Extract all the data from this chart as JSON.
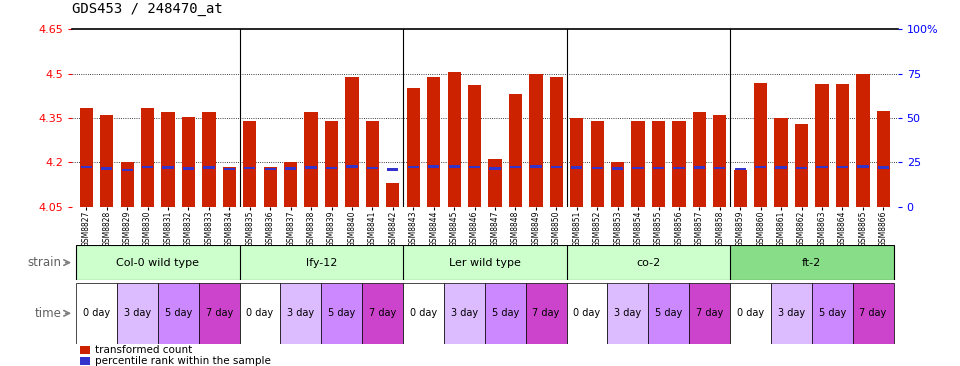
{
  "title": "GDS453 / 248470_at",
  "bar_color": "#CC2200",
  "blue_color": "#3333CC",
  "ylim": [
    4.05,
    4.65
  ],
  "yticks": [
    4.05,
    4.2,
    4.35,
    4.5,
    4.65
  ],
  "gsm_labels": [
    "GSM8827",
    "GSM8828",
    "GSM8829",
    "GSM8830",
    "GSM8831",
    "GSM8832",
    "GSM8833",
    "GSM8834",
    "GSM8835",
    "GSM8836",
    "GSM8837",
    "GSM8838",
    "GSM8839",
    "GSM8840",
    "GSM8841",
    "GSM8842",
    "GSM8843",
    "GSM8844",
    "GSM8845",
    "GSM8846",
    "GSM8847",
    "GSM8848",
    "GSM8849",
    "GSM8850",
    "GSM8851",
    "GSM8852",
    "GSM8853",
    "GSM8854",
    "GSM8855",
    "GSM8856",
    "GSM8857",
    "GSM8858",
    "GSM8859",
    "GSM8860",
    "GSM8861",
    "GSM8862",
    "GSM8863",
    "GSM8864",
    "GSM8865",
    "GSM8866"
  ],
  "bar_heights": [
    4.385,
    4.36,
    4.2,
    4.385,
    4.37,
    4.355,
    4.37,
    4.185,
    4.34,
    4.185,
    4.2,
    4.37,
    4.34,
    4.49,
    4.34,
    4.13,
    4.45,
    4.49,
    4.505,
    4.46,
    4.21,
    4.43,
    4.5,
    4.49,
    4.35,
    4.34,
    4.2,
    4.34,
    4.34,
    4.34,
    4.37,
    4.36,
    4.175,
    4.47,
    4.35,
    4.33,
    4.465,
    4.465,
    4.5,
    4.375
  ],
  "blue_heights": [
    4.185,
    4.18,
    4.175,
    4.185,
    4.183,
    4.18,
    4.183,
    4.178,
    4.182,
    4.178,
    4.179,
    4.183,
    4.182,
    4.186,
    4.182,
    4.176,
    4.184,
    4.186,
    4.186,
    4.185,
    4.179,
    4.184,
    4.186,
    4.185,
    4.183,
    4.182,
    4.179,
    4.182,
    4.182,
    4.182,
    4.183,
    4.181,
    4.177,
    4.185,
    4.183,
    4.182,
    4.185,
    4.185,
    4.186,
    4.183
  ],
  "strains": [
    {
      "label": "Col-0 wild type",
      "start": 0,
      "end": 8
    },
    {
      "label": "lfy-12",
      "start": 8,
      "end": 16
    },
    {
      "label": "Ler wild type",
      "start": 16,
      "end": 24
    },
    {
      "label": "co-2",
      "start": 24,
      "end": 32
    },
    {
      "label": "ft-2",
      "start": 32,
      "end": 40
    }
  ],
  "strain_colors": [
    "#CCFFCC",
    "#CCFFCC",
    "#CCFFCC",
    "#CCFFCC",
    "#88DD88"
  ],
  "time_labels": [
    "0 day",
    "3 day",
    "5 day",
    "7 day"
  ],
  "time_colors": [
    "#FFCCFF",
    "#EE99EE",
    "#DD66DD",
    "#CC33CC"
  ],
  "time_bg_colors": [
    "#FFFFFF",
    "#DDCCFF",
    "#CC99FF",
    "#BB66EE"
  ],
  "background_color": "#FFFFFF",
  "label_color_strain": "#808080",
  "label_color_time": "#808080"
}
